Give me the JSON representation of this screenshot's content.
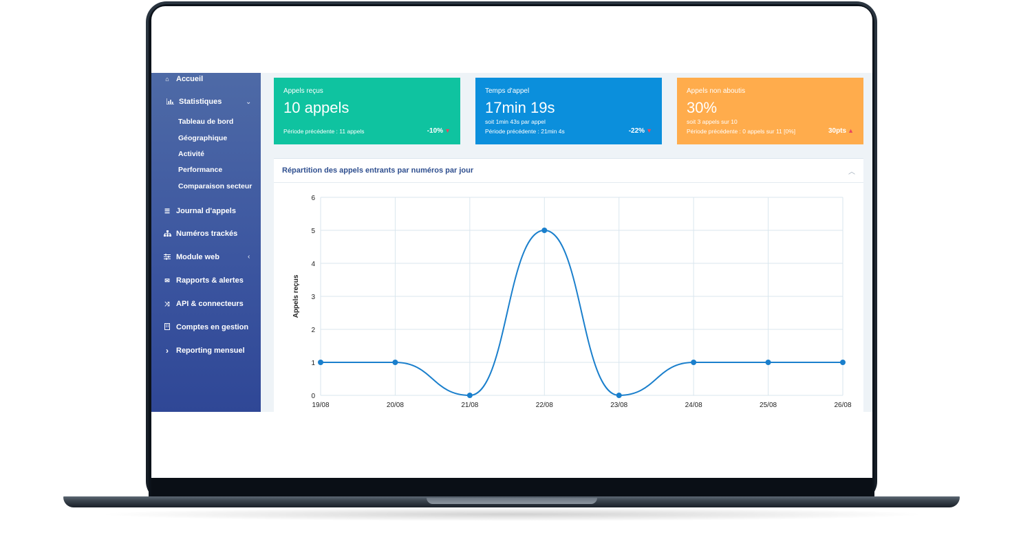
{
  "sidebar": {
    "items": [
      {
        "label": "Accueil",
        "icon": "home-icon"
      },
      {
        "label": "Statistiques",
        "icon": "bar-chart-icon"
      },
      {
        "label": "Journal d'appels",
        "icon": "list-icon"
      },
      {
        "label": "Numéros trackés",
        "icon": "sitemap-icon"
      },
      {
        "label": "Module web",
        "icon": "sliders-icon"
      },
      {
        "label": "Rapports & alertes",
        "icon": "envelope-icon"
      },
      {
        "label": "API & connecteurs",
        "icon": "random-icon"
      },
      {
        "label": "Comptes en gestion",
        "icon": "building-icon"
      },
      {
        "label": "Reporting mensuel",
        "icon": "chevron-right-icon"
      }
    ],
    "subitems": [
      "Tableau de bord",
      "Géographique",
      "Activité",
      "Performance",
      "Comparaison secteur"
    ]
  },
  "cards": [
    {
      "label": "Appels reçus",
      "value": "10 appels",
      "sub": "",
      "previous": "Période précédente : 11 appels",
      "delta": "-10%",
      "trend": "down",
      "color": "#0fc3a0"
    },
    {
      "label": "Temps d'appel",
      "value": "17min 19s",
      "sub": "soit 1min 43s par appel",
      "previous": "Période précédente : 21min 4s",
      "delta": "-22%",
      "trend": "down",
      "color": "#0b8fdc"
    },
    {
      "label": "Appels non aboutis",
      "value": "30%",
      "sub": "soit 3 appels sur 10",
      "previous": "Période précédente : 0 appels sur 11 [0%]",
      "delta": "30pts",
      "trend": "up",
      "color": "#ffac4c"
    }
  ],
  "panel": {
    "title": "Répartition des appels entrants par numéros par jour"
  },
  "chart_data": {
    "type": "line",
    "title": "",
    "xlabel": "",
    "ylabel": "Appels reçus",
    "categories": [
      "19/08",
      "20/08",
      "21/08",
      "22/08",
      "23/08",
      "24/08",
      "25/08",
      "26/08"
    ],
    "values": [
      1,
      1,
      0,
      5,
      0,
      1,
      1,
      1
    ],
    "ylim": [
      0,
      6
    ],
    "yticks": [
      0,
      1,
      2,
      3,
      4,
      5,
      6
    ],
    "grid": true,
    "line_color": "#1a7fcc"
  }
}
